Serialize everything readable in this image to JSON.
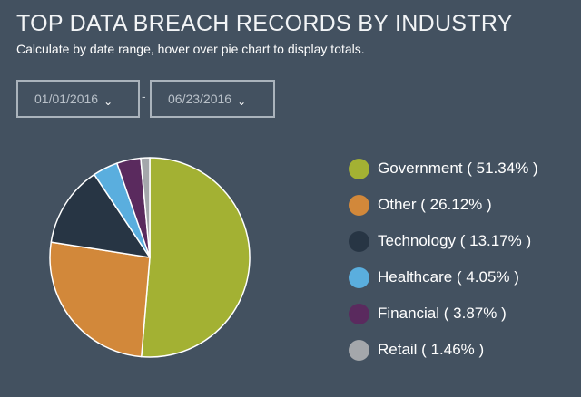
{
  "header": {
    "title": "TOP DATA BREACH RECORDS BY INDUSTRY",
    "subtitle": "Calculate by date range, hover over pie chart to display totals."
  },
  "date_range": {
    "start": "01/01/2016",
    "separator": "-",
    "end": "06/23/2016",
    "caret": "⌄"
  },
  "chart_data": {
    "type": "pie",
    "series": [
      {
        "name": "Government",
        "value": 51.34,
        "label": "Government ( 51.34% )",
        "color": "#a3b133"
      },
      {
        "name": "Other",
        "value": 26.12,
        "label": "Other ( 26.12% )",
        "color": "#d2883a"
      },
      {
        "name": "Technology",
        "value": 13.17,
        "label": "Technology ( 13.17% )",
        "color": "#273544"
      },
      {
        "name": "Healthcare",
        "value": 4.05,
        "label": "Healthcare ( 4.05% )",
        "color": "#5aaede"
      },
      {
        "name": "Financial",
        "value": 3.87,
        "label": "Financial ( 3.87% )",
        "color": "#5a2a5e"
      },
      {
        "name": "Retail",
        "value": 1.46,
        "label": "Retail ( 1.46% )",
        "color": "#a4a7ab"
      }
    ],
    "start_angle": "12 o'clock",
    "direction": "clockwise",
    "legend_position": "right"
  }
}
